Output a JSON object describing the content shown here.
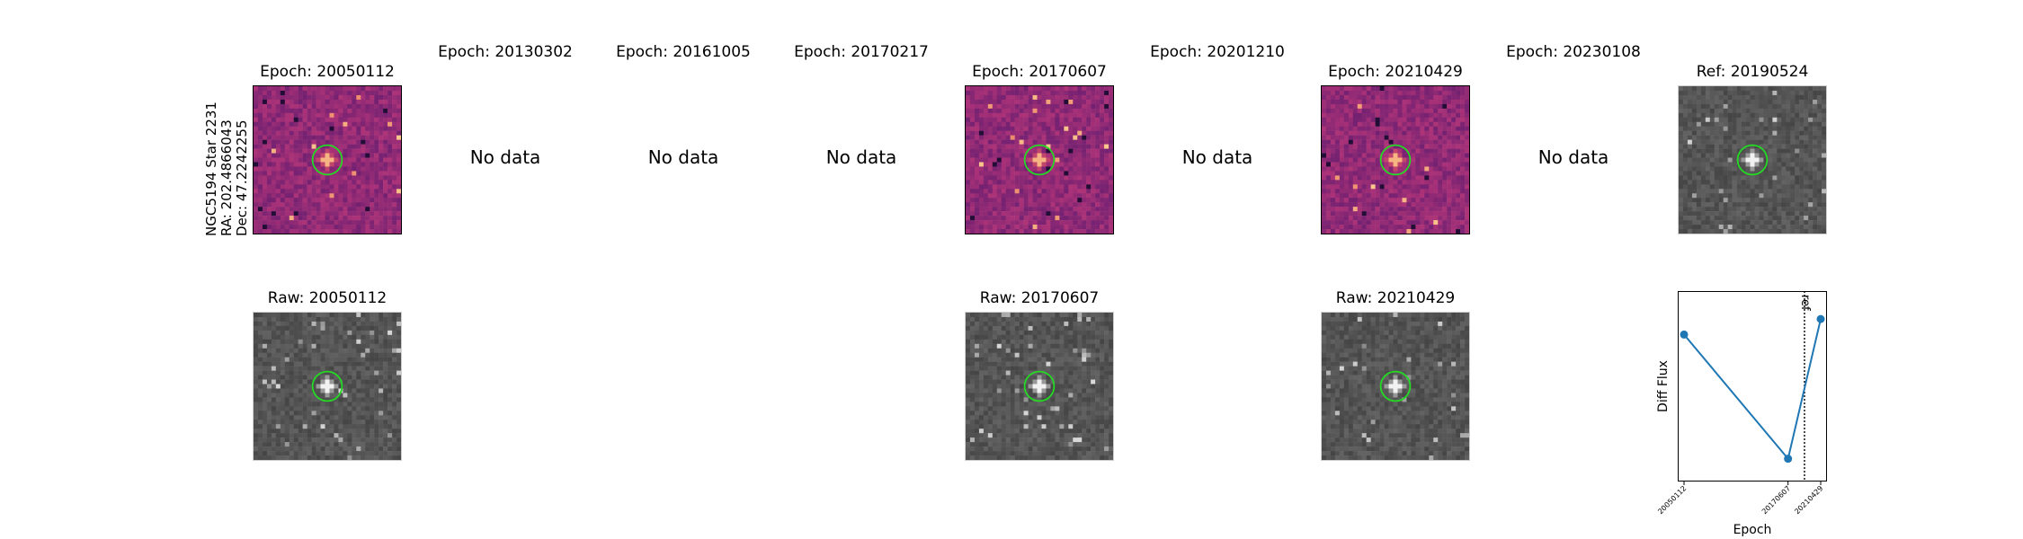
{
  "star": {
    "line1": "NGC5194 Star 2231",
    "line2": "RA: 202.4866043",
    "line3": "Dec: 47.2242255"
  },
  "epochs": [
    {
      "title": "Epoch: 20050112",
      "has_data": true,
      "raw_title": "Raw: 20050112"
    },
    {
      "title": "Epoch: 20130302",
      "has_data": false,
      "nodata_text": "No data"
    },
    {
      "title": "Epoch: 20161005",
      "has_data": false,
      "nodata_text": "No data"
    },
    {
      "title": "Epoch: 20170217",
      "has_data": false,
      "nodata_text": "No data"
    },
    {
      "title": "Epoch: 20170607",
      "has_data": true,
      "raw_title": "Raw: 20170607"
    },
    {
      "title": "Epoch: 20201210",
      "has_data": false,
      "nodata_text": "No data"
    },
    {
      "title": "Epoch: 20210429",
      "has_data": true,
      "raw_title": "Raw: 20210429"
    },
    {
      "title": "Epoch: 20230108",
      "has_data": false,
      "nodata_text": "No data"
    }
  ],
  "reference": {
    "title": "Ref: 20190524"
  },
  "colors": {
    "circle": "#22dd22",
    "series": "#1f77b4",
    "diff_base": "#a0307a",
    "raw_base": "#6a6a6a"
  },
  "chart_data": {
    "type": "line",
    "title": "",
    "xlabel": "Epoch",
    "ylabel": "Diff Flux",
    "x": [
      "20050112",
      "20170607",
      "20210429"
    ],
    "series": [
      {
        "values": [
          0.8,
          0.08,
          0.89
        ]
      }
    ],
    "ylim": [
      0,
      1
    ],
    "reference_line": {
      "label": "ref",
      "date": "20190524",
      "style": "dotted"
    },
    "grid": false
  }
}
